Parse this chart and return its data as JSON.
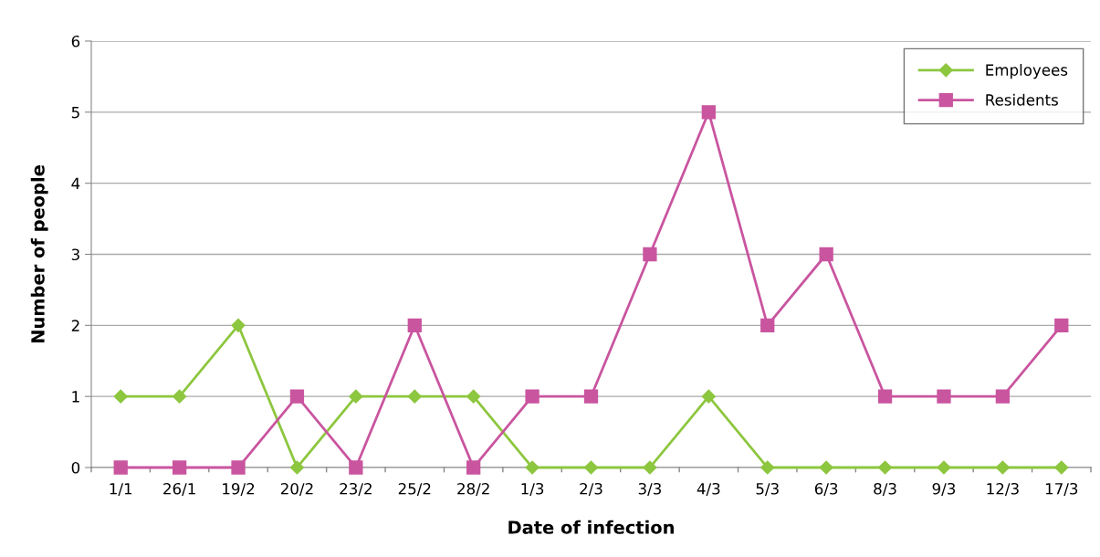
{
  "chart_data": {
    "type": "line",
    "xlabel": "Date of infection",
    "ylabel": "Number of people",
    "categories": [
      "1/1",
      "26/1",
      "19/2",
      "20/2",
      "23/2",
      "25/2",
      "28/2",
      "1/3",
      "2/3",
      "3/3",
      "4/3",
      "5/3",
      "6/3",
      "8/3",
      "9/3",
      "12/3",
      "17/3"
    ],
    "series": [
      {
        "name": "Employees",
        "color": "#8dc63f",
        "marker": "diamond",
        "values": [
          1,
          1,
          2,
          0,
          1,
          1,
          1,
          0,
          0,
          0,
          1,
          0,
          0,
          0,
          0,
          0,
          0
        ]
      },
      {
        "name": "Residents",
        "color": "#c9559f",
        "marker": "square",
        "values": [
          0,
          0,
          0,
          1,
          0,
          2,
          0,
          1,
          1,
          3,
          5,
          2,
          3,
          1,
          1,
          1,
          2
        ]
      }
    ],
    "ylim": [
      0,
      6
    ],
    "yticks": [
      0,
      1,
      2,
      3,
      4,
      5,
      6
    ],
    "grid": "y",
    "legend": "top right",
    "line_style": "solid"
  }
}
